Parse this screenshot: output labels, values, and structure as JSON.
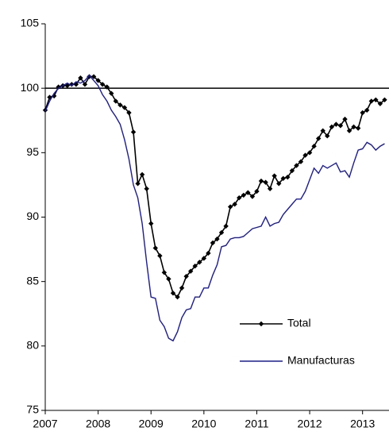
{
  "chart_data": {
    "type": "line",
    "x": [
      2007,
      2007.083,
      2007.167,
      2007.25,
      2007.333,
      2007.417,
      2007.5,
      2007.583,
      2007.667,
      2007.75,
      2007.833,
      2007.917,
      2008,
      2008.083,
      2008.167,
      2008.25,
      2008.333,
      2008.417,
      2008.5,
      2008.583,
      2008.667,
      2008.75,
      2008.833,
      2008.917,
      2009,
      2009.083,
      2009.167,
      2009.25,
      2009.333,
      2009.417,
      2009.5,
      2009.583,
      2009.667,
      2009.75,
      2009.833,
      2009.917,
      2010,
      2010.083,
      2010.167,
      2010.25,
      2010.333,
      2010.417,
      2010.5,
      2010.583,
      2010.667,
      2010.75,
      2010.833,
      2010.917,
      2011,
      2011.083,
      2011.167,
      2011.25,
      2011.333,
      2011.417,
      2011.5,
      2011.583,
      2011.667,
      2011.75,
      2011.833,
      2011.917,
      2012,
      2012.083,
      2012.167,
      2012.25,
      2012.333,
      2012.417,
      2012.5,
      2012.583,
      2012.667,
      2012.75,
      2012.833,
      2012.917,
      2013,
      2013.083,
      2013.167,
      2013.25,
      2013.333,
      2013.417
    ],
    "series": [
      {
        "name": "Total",
        "color": "#000000",
        "marker": "diamond",
        "values": [
          98.3,
          99.3,
          99.4,
          100.1,
          100.2,
          100.2,
          100.3,
          100.3,
          100.8,
          100.3,
          100.9,
          100.9,
          100.6,
          100.3,
          100.1,
          99.6,
          99.0,
          98.7,
          98.5,
          98.1,
          96.6,
          92.6,
          93.3,
          92.2,
          89.5,
          87.6,
          87.0,
          85.7,
          85.2,
          84.1,
          83.8,
          84.5,
          85.4,
          85.8,
          86.2,
          86.5,
          86.8,
          87.2,
          88.0,
          88.3,
          88.8,
          89.3,
          90.8,
          91.0,
          91.5,
          91.7,
          91.9,
          91.6,
          92.0,
          92.8,
          92.7,
          92.2,
          93.2,
          92.6,
          93.0,
          93.1,
          93.6,
          94.0,
          94.3,
          94.8,
          95.0,
          95.5,
          96.1,
          96.7,
          96.3,
          97.0,
          97.2,
          97.1,
          97.6,
          96.7,
          97.0,
          96.9,
          98.1,
          98.3,
          99.0,
          99.1,
          98.8,
          99.1
        ]
      },
      {
        "name": "Manufacturas",
        "color": "#1a1aa6",
        "values": [
          98.2,
          99.0,
          99.6,
          100.0,
          100.2,
          100.4,
          100.2,
          100.5,
          100.4,
          100.6,
          101.0,
          100.6,
          100.2,
          99.5,
          99.0,
          98.3,
          97.8,
          97.2,
          96.0,
          94.5,
          92.5,
          91.5,
          89.5,
          86.5,
          83.8,
          83.7,
          82.0,
          81.5,
          80.6,
          80.4,
          81.1,
          82.2,
          82.8,
          82.9,
          83.8,
          83.8,
          84.5,
          84.5,
          85.5,
          86.3,
          87.7,
          87.8,
          88.3,
          88.4,
          88.4,
          88.5,
          88.8,
          89.1,
          89.2,
          89.3,
          90.0,
          89.3,
          89.5,
          89.6,
          90.2,
          90.6,
          91.0,
          91.4,
          91.4,
          92.0,
          92.9,
          93.8,
          93.4,
          94.0,
          93.8,
          94.0,
          94.2,
          93.5,
          93.6,
          93.1,
          94.2,
          95.2,
          95.3,
          95.8,
          95.6,
          95.2,
          95.5,
          95.7
        ]
      }
    ],
    "reference_line": 100,
    "xlim": [
      2007,
      2013.5
    ],
    "xticks": [
      2007,
      2008,
      2009,
      2010,
      2011,
      2012,
      2013
    ],
    "ylim": [
      75,
      105
    ],
    "yticks": [
      75,
      80,
      85,
      90,
      95,
      100,
      105
    ],
    "legend": "lower-right"
  }
}
